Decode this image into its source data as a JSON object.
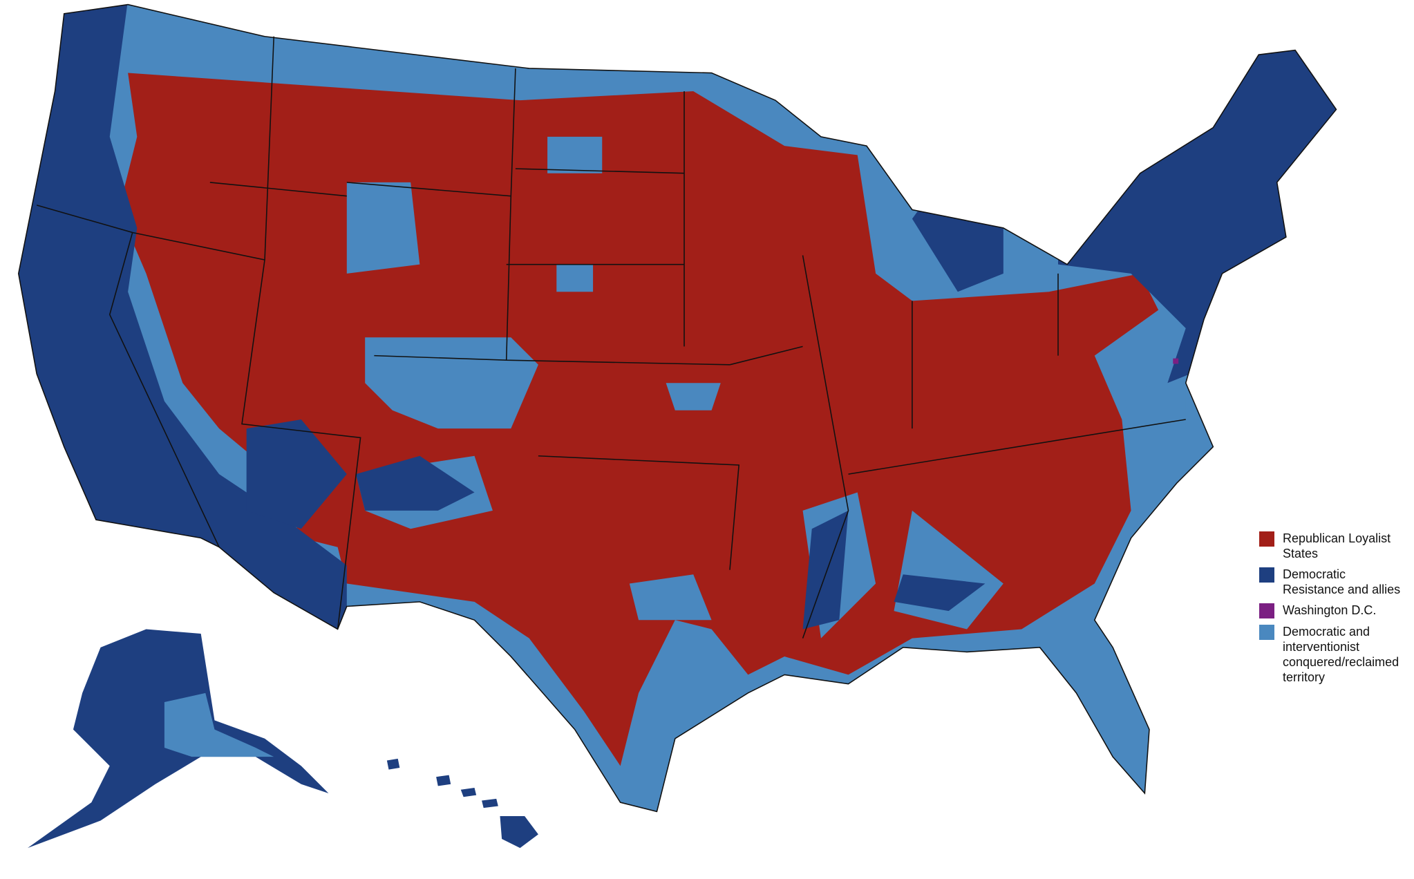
{
  "legend": {
    "items": [
      {
        "label": "Republican Loyalist States",
        "color": "#a21f18"
      },
      {
        "label": "Democratic Resistance and allies",
        "color": "#1e3f80"
      },
      {
        "label": "Washington D.C.",
        "color": "#7b1f82"
      },
      {
        "label": "Democratic and interventionist conquered/reclaimed territory",
        "color": "#4a88bf"
      }
    ]
  }
}
